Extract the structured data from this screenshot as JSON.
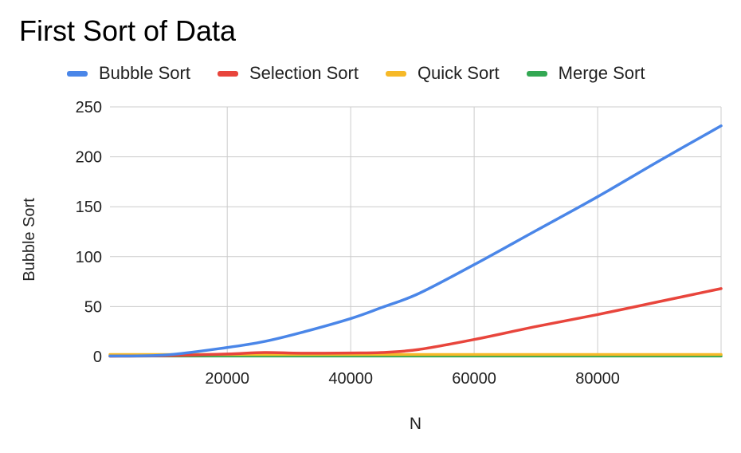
{
  "chart_data": {
    "type": "line",
    "title": "First Sort of Data",
    "xlabel": "N",
    "ylabel": "Bubble Sort",
    "xlim": [
      1000,
      100000
    ],
    "ylim": [
      0,
      250
    ],
    "x_ticks": [
      20000,
      40000,
      60000,
      80000
    ],
    "y_ticks": [
      0,
      50,
      100,
      150,
      200,
      250
    ],
    "grid": true,
    "legend_position": "top",
    "series": [
      {
        "name": "Bubble Sort",
        "color": "#4a86e8",
        "x": [
          1000,
          10000,
          20000,
          26000,
          32000,
          40000,
          45000,
          51000,
          60000,
          70000,
          80000,
          90000,
          100000
        ],
        "y": [
          0.5,
          1.5,
          9,
          15,
          24,
          38,
          49,
          63,
          92,
          126,
          160,
          196,
          231
        ]
      },
      {
        "name": "Selection Sort",
        "color": "#e8453c",
        "x": [
          1000,
          10000,
          20000,
          26000,
          32000,
          40000,
          45000,
          51000,
          60000,
          70000,
          80000,
          90000,
          100000
        ],
        "y": [
          0.3,
          0.8,
          2.5,
          4,
          3.3,
          3.5,
          4,
          7,
          17,
          30,
          42,
          55,
          68
        ]
      },
      {
        "name": "Quick Sort",
        "color": "#f6b928",
        "x": [
          1000,
          20000,
          40000,
          60000,
          80000,
          100000
        ],
        "y": [
          2,
          2,
          2,
          2,
          2,
          2
        ]
      },
      {
        "name": "Merge Sort",
        "color": "#33a853",
        "x": [
          1000,
          20000,
          40000,
          60000,
          80000,
          100000
        ],
        "y": [
          0.5,
          0.5,
          0.5,
          0.5,
          0.5,
          0.5
        ]
      }
    ]
  }
}
